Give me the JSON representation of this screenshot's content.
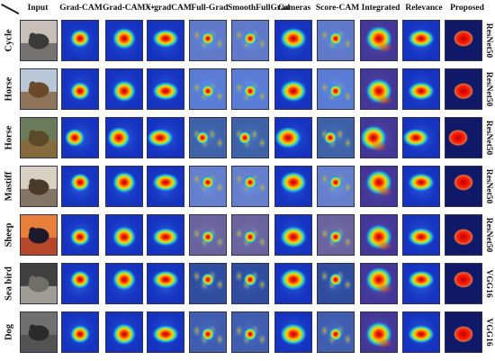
{
  "header": {
    "columns": [
      "Input",
      "Grad-CAM",
      "Grad-CAM++",
      "X-gradCAM",
      "Full-Grad",
      "SmoothFullGrad",
      "Cameras",
      "Score-CAM",
      "Integrated",
      "Relevance",
      "Proposed"
    ]
  },
  "rows": [
    {
      "label": "Cycle",
      "model": "ResNet50"
    },
    {
      "label": "Horse",
      "model": "ResNet50"
    },
    {
      "label": "Horse",
      "model": "ResNet50"
    },
    {
      "label": "Mastiff",
      "model": "ResNet50"
    },
    {
      "label": "Sheep",
      "model": "ResNet50"
    },
    {
      "label": "Sea bird",
      "model": "VGG16"
    },
    {
      "label": "Dog",
      "model": "VGG16"
    }
  ]
}
